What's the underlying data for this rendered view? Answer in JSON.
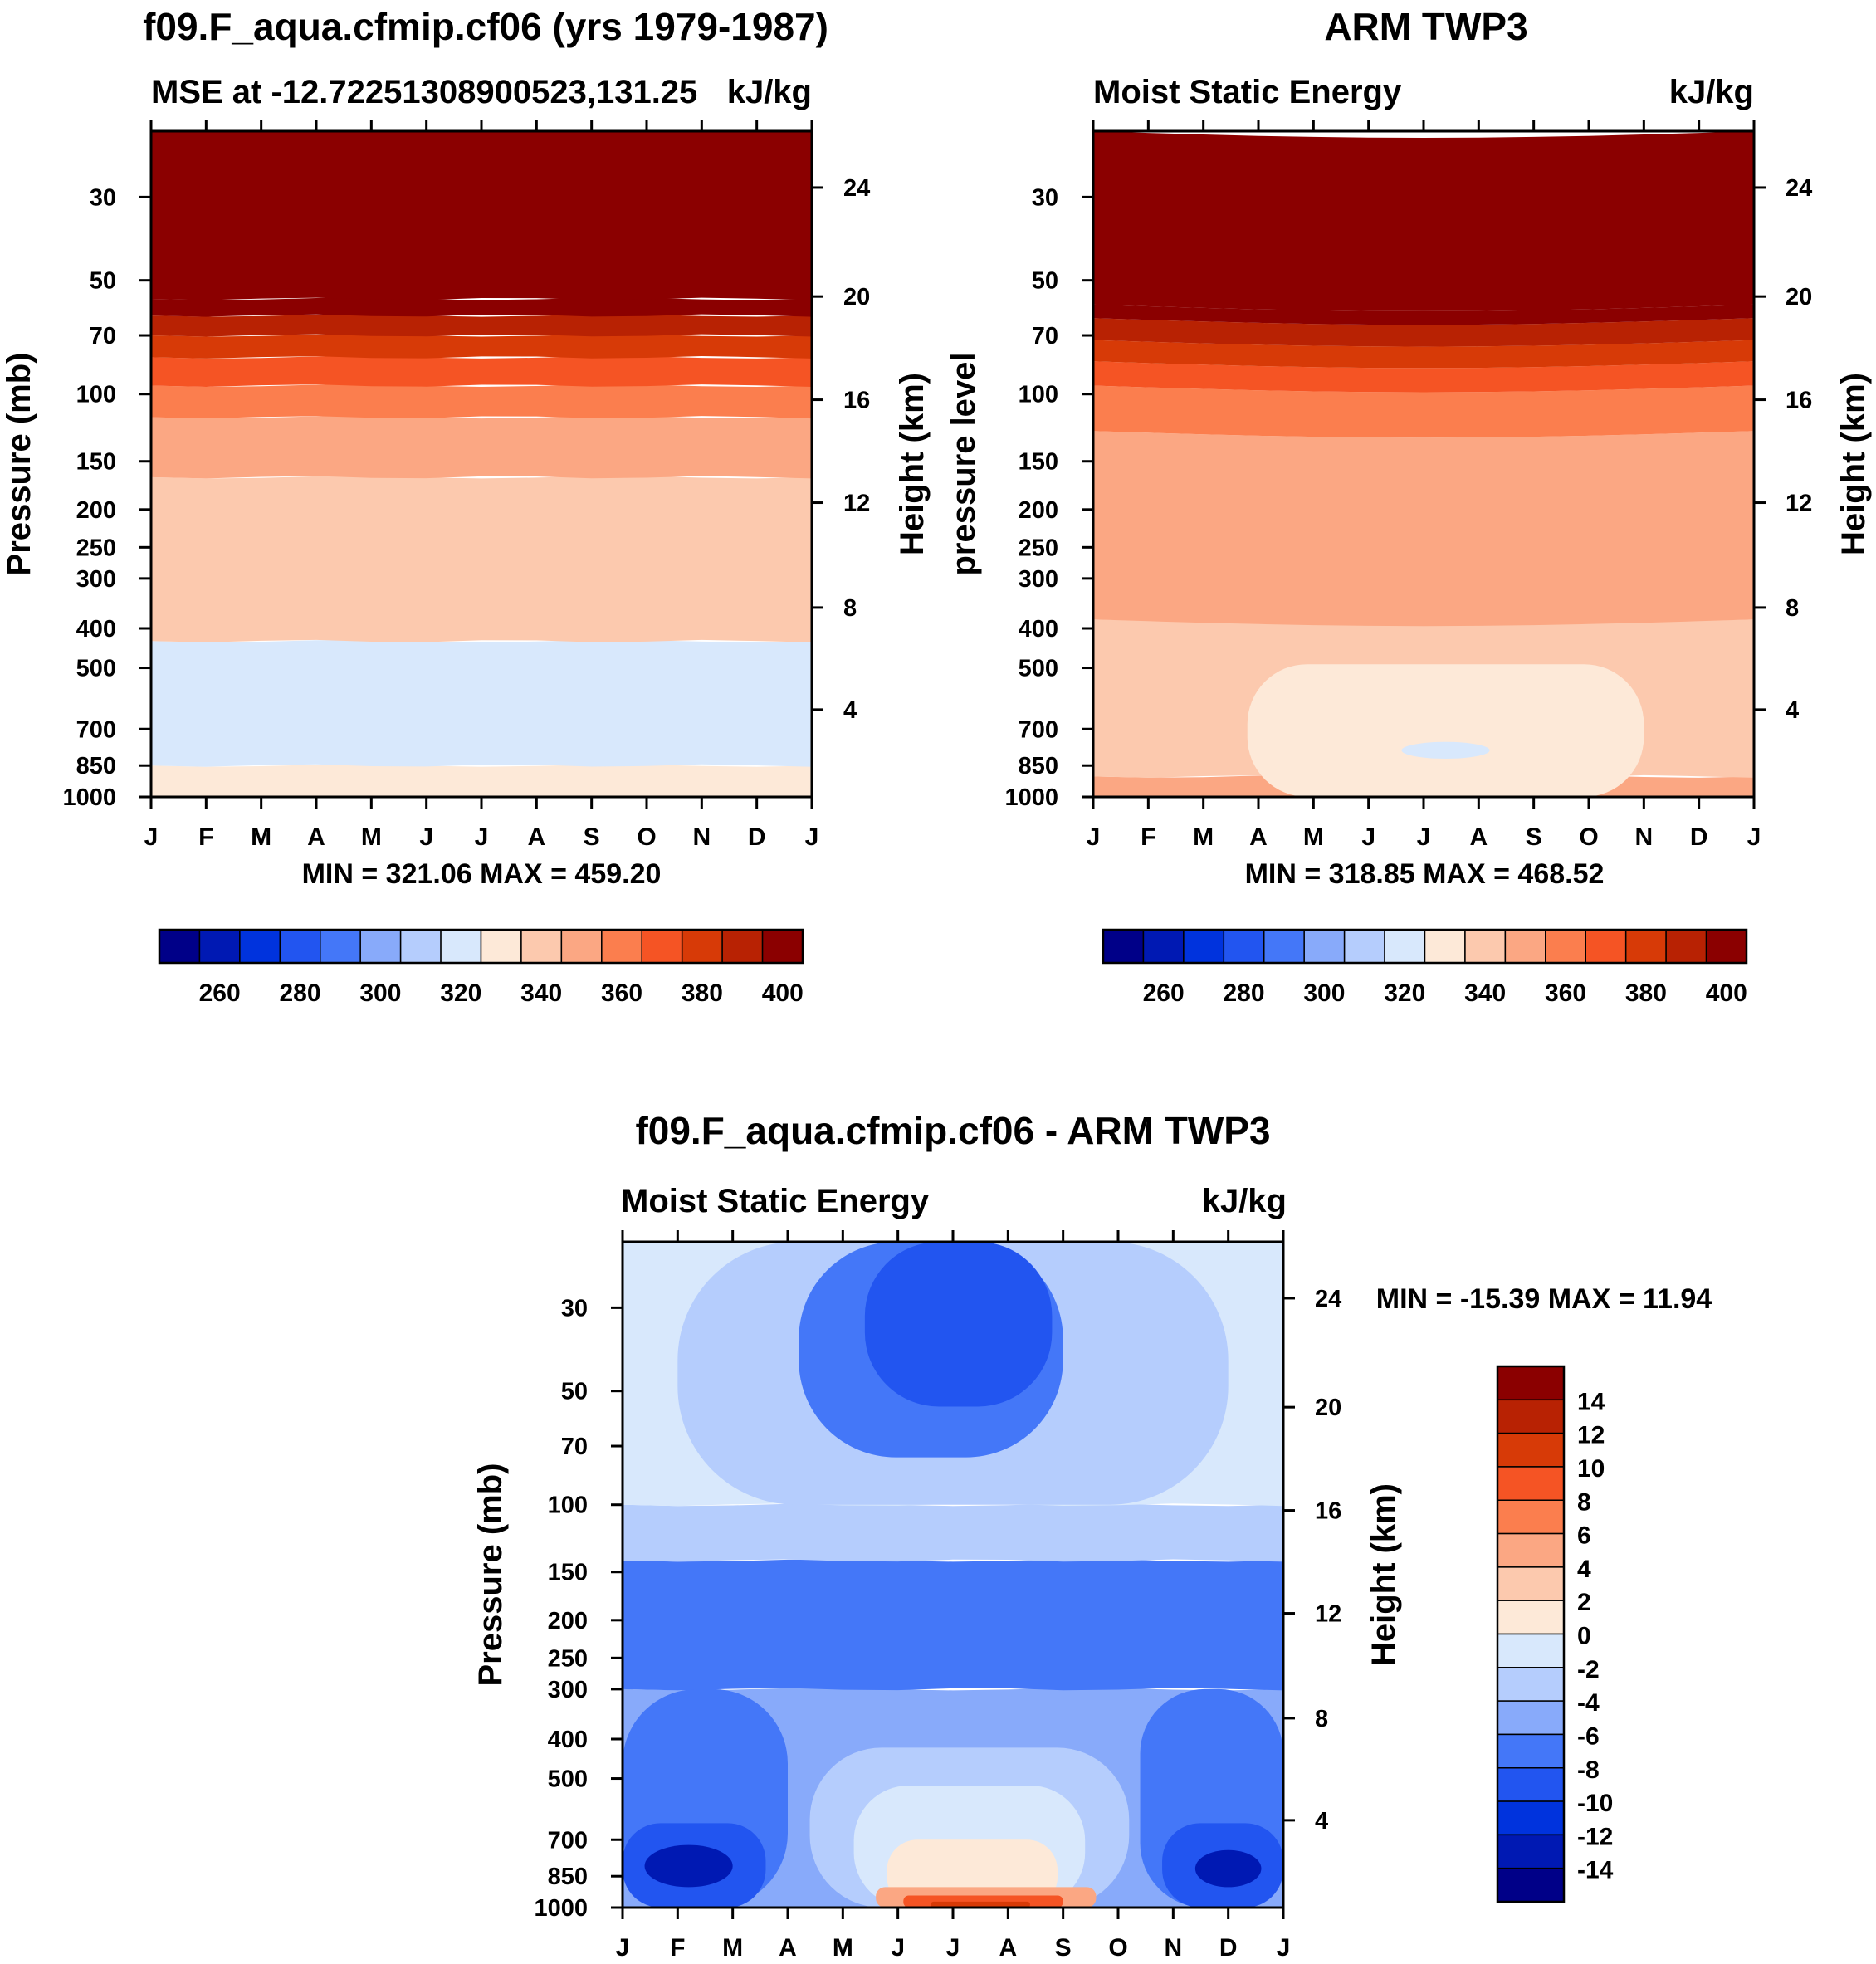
{
  "colors": {
    "mse_fill": [
      "#000088",
      "#0019b3",
      "#0033dd",
      "#2255f0",
      "#4477f8",
      "#88aafa",
      "#b5cdfd",
      "#d8e8fc",
      "#fde9d8",
      "#fcc9ae",
      "#fba783",
      "#fb7e4e",
      "#f55424",
      "#d73a07",
      "#b82203",
      "#8b0000"
    ],
    "diff_fill": [
      "#000088",
      "#0019b3",
      "#0033dd",
      "#2255f0",
      "#4477f8",
      "#88aafa",
      "#b5cdfd",
      "#d8e8fc",
      "#fde9d8",
      "#fcc9ae",
      "#fba783",
      "#fb7e4e",
      "#f55424",
      "#d73a07",
      "#b82203",
      "#8b0000"
    ]
  },
  "chart_data": [
    {
      "type": "heatmap",
      "title": "f09.F_aqua.cfmip.cf06 (yrs 1979-1987)",
      "subtitle_left": "MSE at -12.72251308900523,131.25",
      "subtitle_right": "kJ/kg",
      "ylabel": "Pressure (mb)",
      "y2label": "Height (km)",
      "x_ticks": [
        "J",
        "F",
        "M",
        "A",
        "M",
        "J",
        "J",
        "A",
        "S",
        "O",
        "N",
        "D",
        "J"
      ],
      "y_ticks": [
        "30",
        "50",
        "70",
        "100",
        "150",
        "200",
        "250",
        "300",
        "400",
        "500",
        "700",
        "850",
        "1000"
      ],
      "y2_ticks": [
        "24",
        "20",
        "16",
        "12",
        "8",
        "4"
      ],
      "minmax": "MIN = 321.06 MAX = 459.20",
      "colorbar_labels": [
        "260",
        "280",
        "300",
        "320",
        "340",
        "360",
        "380",
        "400"
      ],
      "bands": [
        {
          "value": 325,
          "bottom": 850,
          "top": 1000
        },
        {
          "value": 315,
          "bottom": 430,
          "top": 850
        },
        {
          "value": 335,
          "bottom": 165,
          "top": 430
        },
        {
          "value": 345,
          "bottom": 115,
          "top": 165
        },
        {
          "value": 355,
          "bottom": 95,
          "top": 115
        },
        {
          "value": 365,
          "bottom": 80,
          "top": 95
        },
        {
          "value": 375,
          "bottom": 70,
          "top": 80
        },
        {
          "value": 385,
          "bottom": 62,
          "top": 70
        },
        {
          "value": 395,
          "bottom": 56,
          "top": 62
        },
        {
          "value": 405,
          "bottom": 20,
          "top": 56
        }
      ]
    },
    {
      "type": "heatmap",
      "title": "ARM TWP3",
      "subtitle_left": "Moist Static Energy",
      "subtitle_right": "kJ/kg",
      "ylabel": "pressure level",
      "y2label": "Height (km)",
      "x_ticks": [
        "J",
        "F",
        "M",
        "A",
        "M",
        "J",
        "J",
        "A",
        "S",
        "O",
        "N",
        "D",
        "J"
      ],
      "y_ticks": [
        "30",
        "50",
        "70",
        "100",
        "150",
        "200",
        "250",
        "300",
        "400",
        "500",
        "700",
        "850",
        "1000"
      ],
      "y2_ticks": [
        "24",
        "20",
        "16",
        "12",
        "8",
        "4"
      ],
      "minmax": "MIN = 318.85 MAX = 468.52",
      "colorbar_labels": [
        "260",
        "280",
        "300",
        "320",
        "340",
        "360",
        "380",
        "400"
      ],
      "bands": [
        {
          "value": 345,
          "bottom": 900,
          "top": 1000
        },
        {
          "value": 335,
          "bottom": 380,
          "top": 900
        },
        {
          "value": 345,
          "bottom": 125,
          "top": 380
        },
        {
          "value": 355,
          "bottom": 95,
          "top": 125
        },
        {
          "value": 365,
          "bottom": 82,
          "top": 95
        },
        {
          "value": 375,
          "bottom": 72,
          "top": 82
        },
        {
          "value": 385,
          "bottom": 63,
          "top": 72
        },
        {
          "value": 395,
          "bottom": 58,
          "top": 63
        },
        {
          "value": 405,
          "bottom": 20,
          "top": 58
        }
      ],
      "blobs": [
        {
          "value": 325,
          "month_start": 2.8,
          "month_end": 10.0,
          "p_top": 490,
          "p_bottom": 1000
        },
        {
          "value": 315,
          "month_start": 5.6,
          "month_end": 7.2,
          "p_top": 750,
          "p_bottom": 820
        }
      ]
    },
    {
      "type": "heatmap",
      "title": "f09.F_aqua.cfmip.cf06 - ARM TWP3",
      "subtitle_left": "Moist Static Energy",
      "subtitle_right": "kJ/kg",
      "ylabel": "Pressure (mb)",
      "y2label": "Height (km)",
      "x_ticks": [
        "J",
        "F",
        "M",
        "A",
        "M",
        "J",
        "J",
        "A",
        "S",
        "O",
        "N",
        "D",
        "J"
      ],
      "y_ticks": [
        "30",
        "50",
        "70",
        "100",
        "150",
        "200",
        "250",
        "300",
        "400",
        "500",
        "700",
        "850",
        "1000"
      ],
      "y2_ticks": [
        "24",
        "20",
        "16",
        "12",
        "8",
        "4"
      ],
      "minmax": "MIN = -15.39 MAX =  11.94",
      "colorbar_labels": [
        "14",
        "12",
        "10",
        "8",
        "6",
        "4",
        "2",
        "0",
        "-2",
        "-4",
        "-6",
        "-8",
        "-10",
        "-12",
        "-14"
      ],
      "bands": [
        {
          "value": -5,
          "bottom": 300,
          "top": 1000
        },
        {
          "value": -7,
          "bottom": 140,
          "top": 300
        },
        {
          "value": -3,
          "bottom": 100,
          "top": 140
        },
        {
          "value": -1,
          "bottom": 20,
          "top": 100
        }
      ],
      "blobs": [
        {
          "value": -3,
          "month_start": 1.0,
          "month_end": 11.0,
          "p_top": 20,
          "p_bottom": 100
        },
        {
          "value": -7,
          "month_start": 3.2,
          "month_end": 8.0,
          "p_top": 20,
          "p_bottom": 75
        },
        {
          "value": -9,
          "month_start": 4.4,
          "month_end": 7.8,
          "p_top": 20,
          "p_bottom": 55
        },
        {
          "value": -7,
          "month_start": 0.0,
          "month_end": 3.0,
          "p_top": 300,
          "p_bottom": 1000
        },
        {
          "value": -7,
          "month_start": 9.4,
          "month_end": 12.0,
          "p_top": 300,
          "p_bottom": 1000
        },
        {
          "value": -9,
          "month_start": 0.0,
          "month_end": 2.6,
          "p_top": 640,
          "p_bottom": 1000
        },
        {
          "value": -9,
          "month_start": 9.8,
          "month_end": 12.0,
          "p_top": 640,
          "p_bottom": 1000
        },
        {
          "value": -13,
          "month_start": 0.4,
          "month_end": 2.0,
          "p_top": 720,
          "p_bottom": 900
        },
        {
          "value": -13,
          "month_start": 10.4,
          "month_end": 11.6,
          "p_top": 740,
          "p_bottom": 900
        },
        {
          "value": -3,
          "month_start": 3.4,
          "month_end": 9.2,
          "p_top": 420,
          "p_bottom": 1000
        },
        {
          "value": -1,
          "month_start": 4.2,
          "month_end": 8.4,
          "p_top": 520,
          "p_bottom": 1000
        },
        {
          "value": 1,
          "month_start": 4.8,
          "month_end": 7.9,
          "p_top": 700,
          "p_bottom": 1000
        },
        {
          "value": 5,
          "month_start": 4.6,
          "month_end": 8.6,
          "p_top": 900,
          "p_bottom": 1000
        },
        {
          "value": 9,
          "month_start": 5.1,
          "month_end": 8.0,
          "p_top": 940,
          "p_bottom": 1000
        },
        {
          "value": 11,
          "month_start": 5.6,
          "month_end": 7.4,
          "p_top": 970,
          "p_bottom": 1000
        }
      ]
    }
  ]
}
